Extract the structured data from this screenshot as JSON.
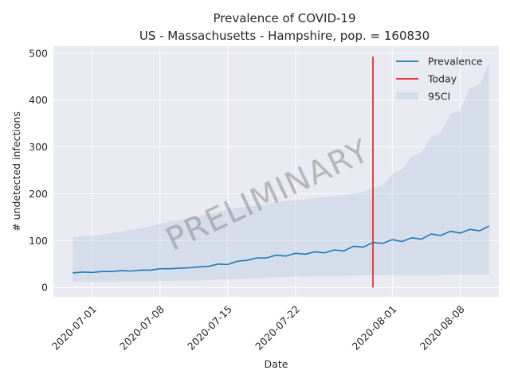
{
  "chart_data": {
    "type": "line",
    "title": "Prevalence of COVID-19",
    "subtitle": "US - Massachusetts - Hampshire, pop. = 160830",
    "xlabel": "Date",
    "ylabel": "# undetected infections",
    "watermark": "PRELIMINARY",
    "x_start": "2020-06-29",
    "x": [
      "2020-06-29",
      "2020-06-30",
      "2020-07-01",
      "2020-07-02",
      "2020-07-03",
      "2020-07-04",
      "2020-07-05",
      "2020-07-06",
      "2020-07-07",
      "2020-07-08",
      "2020-07-09",
      "2020-07-10",
      "2020-07-11",
      "2020-07-12",
      "2020-07-13",
      "2020-07-14",
      "2020-07-15",
      "2020-07-16",
      "2020-07-17",
      "2020-07-18",
      "2020-07-19",
      "2020-07-20",
      "2020-07-21",
      "2020-07-22",
      "2020-07-23",
      "2020-07-24",
      "2020-07-25",
      "2020-07-26",
      "2020-07-27",
      "2020-07-28",
      "2020-07-29",
      "2020-07-30",
      "2020-07-31",
      "2020-08-01",
      "2020-08-02",
      "2020-08-03",
      "2020-08-04",
      "2020-08-05",
      "2020-08-06",
      "2020-08-07",
      "2020-08-08",
      "2020-08-09",
      "2020-08-10",
      "2020-08-11"
    ],
    "xlim": [
      "2020-06-27",
      "2020-08-12"
    ],
    "xticks": [
      "2020-07-01",
      "2020-07-08",
      "2020-07-15",
      "2020-07-22",
      "2020-08-01",
      "2020-08-08"
    ],
    "ylim": [
      -20,
      515
    ],
    "yticks": [
      0,
      100,
      200,
      300,
      400,
      500
    ],
    "legend_position": "top-right",
    "grid": true,
    "series": [
      {
        "name": "Prevalence",
        "color": "#1f77b4",
        "values": [
          31,
          33,
          32,
          34,
          34,
          36,
          35,
          37,
          37,
          40,
          40,
          41,
          42,
          44,
          45,
          50,
          49,
          56,
          58,
          63,
          63,
          69,
          67,
          73,
          71,
          76,
          74,
          80,
          78,
          88,
          86,
          96,
          94,
          102,
          98,
          106,
          103,
          114,
          111,
          120,
          116,
          124,
          121,
          131
        ]
      },
      {
        "name": "95CI",
        "color": "#b0c4de",
        "lower": [
          12,
          12,
          12,
          12,
          12,
          13,
          13,
          13,
          13,
          14,
          14,
          15,
          15,
          15,
          16,
          17,
          17,
          18,
          19,
          20,
          21,
          22,
          22,
          23,
          23,
          24,
          24,
          24,
          25,
          25,
          26,
          26,
          26,
          27,
          27,
          27,
          27,
          27,
          27,
          28,
          28,
          28,
          28,
          28
        ],
        "upper": [
          107,
          110,
          110,
          113,
          116,
          119,
          123,
          126,
          131,
          136,
          141,
          144,
          149,
          152,
          157,
          161,
          166,
          170,
          172,
          175,
          179,
          182,
          184,
          187,
          188,
          190,
          193,
          195,
          198,
          201,
          204,
          212,
          218,
          242,
          252,
          280,
          288,
          322,
          330,
          370,
          378,
          425,
          432,
          480
        ]
      }
    ],
    "today_marker": {
      "name": "Today",
      "date": "2020-07-30",
      "color": "#e31a1c",
      "y_range": [
        0,
        493
      ]
    }
  }
}
